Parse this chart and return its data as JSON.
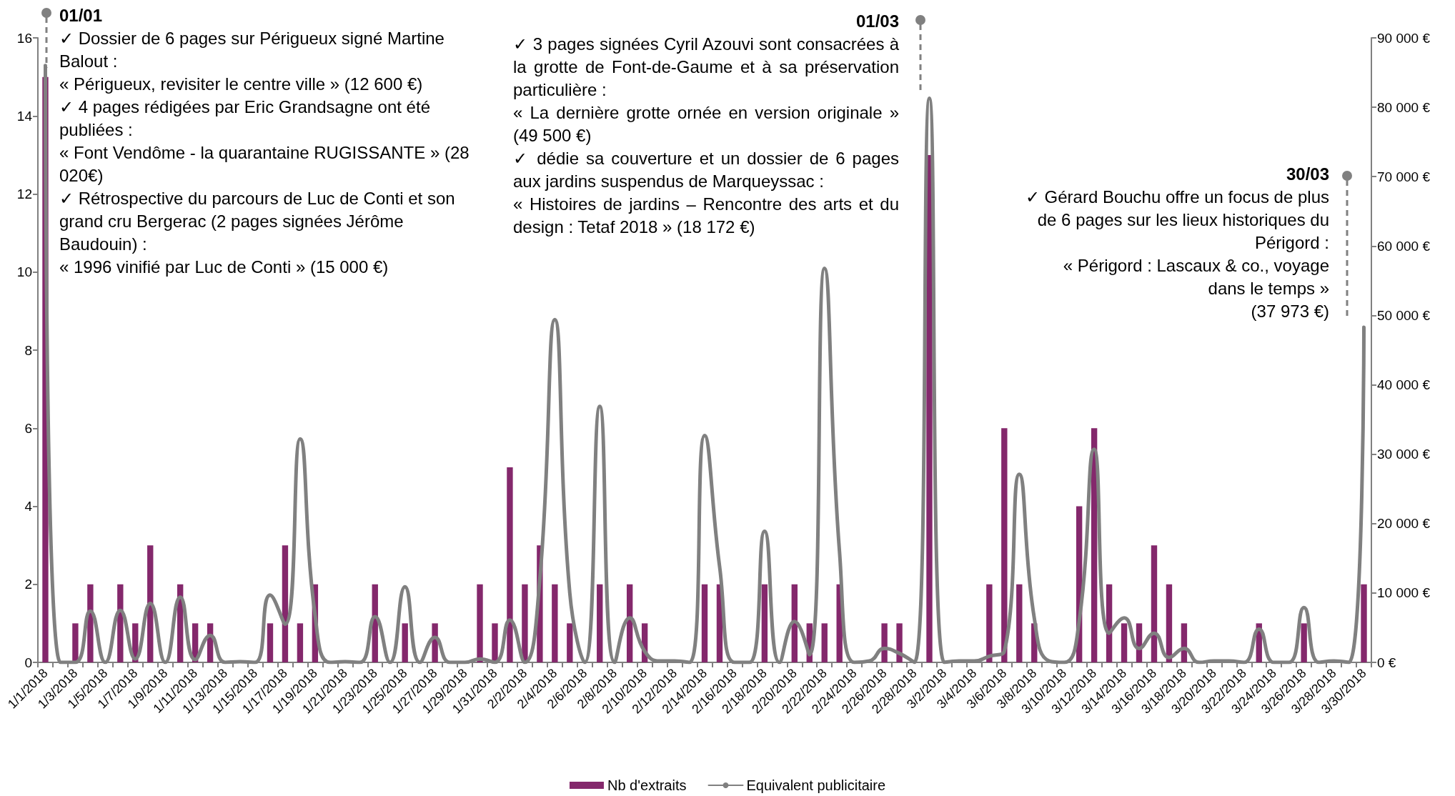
{
  "chart_data": {
    "type": "bar",
    "categories": [
      "1/1/2018",
      null,
      "1/3/2018",
      null,
      "1/5/2018",
      null,
      "1/7/2018",
      null,
      "1/9/2018",
      null,
      "1/11/2018",
      null,
      "1/13/2018",
      null,
      "1/15/2018",
      null,
      "1/17/2018",
      null,
      "1/19/2018",
      null,
      "1/21/2018",
      null,
      "1/23/2018",
      null,
      "1/25/2018",
      null,
      "1/27/2018",
      null,
      "1/29/2018",
      null,
      "1/31/2018",
      null,
      "2/2/2018",
      null,
      "2/4/2018",
      null,
      "2/6/2018",
      null,
      "2/8/2018",
      null,
      "2/10/2018",
      null,
      "2/12/2018",
      null,
      "2/14/2018",
      null,
      "2/16/2018",
      null,
      "2/18/2018",
      null,
      "2/20/2018",
      null,
      "2/22/2018",
      null,
      "2/24/2018",
      null,
      "2/26/2018",
      null,
      "2/28/2018",
      null,
      "3/2/2018",
      null,
      "3/4/2018",
      null,
      "3/6/2018",
      null,
      "3/8/2018",
      null,
      "3/10/2018",
      null,
      "3/12/2018",
      null,
      "3/14/2018",
      null,
      "3/16/2018",
      null,
      "3/18/2018",
      null,
      "3/20/2018",
      null,
      "3/22/2018",
      null,
      "3/24/2018",
      null,
      "3/26/2018",
      null,
      "3/28/2018",
      null,
      "3/30/2018"
    ],
    "series": [
      {
        "name": "Nb d'extraits",
        "color": "#84286c",
        "values": [
          15,
          0,
          1,
          2,
          0,
          2,
          1,
          3,
          0,
          2,
          1,
          1,
          0,
          0,
          0,
          1,
          3,
          1,
          2,
          0,
          0,
          0,
          2,
          0,
          1,
          0,
          1,
          0,
          0,
          2,
          1,
          5,
          2,
          3,
          2,
          1,
          0,
          2,
          0,
          2,
          1,
          0,
          0,
          0,
          2,
          2,
          0,
          0,
          2,
          0,
          2,
          1,
          1,
          2,
          0,
          0,
          1,
          1,
          0,
          13,
          0,
          0,
          0,
          2,
          6,
          2,
          1,
          0,
          0,
          4,
          6,
          2,
          1,
          1,
          3,
          2,
          1,
          0,
          0,
          0,
          0,
          1,
          0,
          0,
          1,
          0,
          0,
          0,
          2
        ]
      },
      {
        "name": "Equivalent publicitaire",
        "type": "line",
        "axis": "y2",
        "color": "#808080",
        "values": [
          86000,
          0,
          0,
          7400,
          0,
          7500,
          500,
          8500,
          0,
          9400,
          400,
          3900,
          0,
          100,
          0,
          9700,
          5500,
          32200,
          6800,
          0,
          100,
          0,
          6600,
          0,
          10900,
          0,
          3600,
          0,
          0,
          500,
          0,
          6100,
          0,
          12000,
          49400,
          10000,
          0,
          36900,
          0,
          6400,
          1600,
          200,
          200,
          0,
          32700,
          13800,
          0,
          0,
          18900,
          0,
          5900,
          1100,
          56800,
          16000,
          0,
          200,
          2000,
          1300,
          0,
          81300,
          0,
          200,
          200,
          900,
          1600,
          27100,
          6400,
          200,
          0,
          6000,
          30700,
          4200,
          6400,
          2000,
          4200,
          700,
          2000,
          0,
          200,
          200,
          0,
          4800,
          0,
          0,
          7900,
          0,
          200,
          0,
          48300
        ]
      }
    ],
    "ylim": [
      0,
      16
    ],
    "yticks": [
      0,
      2,
      4,
      6,
      8,
      10,
      12,
      14,
      16
    ],
    "y2lim": [
      0,
      90000
    ],
    "y2ticks": [
      {
        "value": 0,
        "label": "0 €"
      },
      {
        "value": 10000,
        "label": "10 000 €"
      },
      {
        "value": 20000,
        "label": "20 000 €"
      },
      {
        "value": 30000,
        "label": "30 000 €"
      },
      {
        "value": 40000,
        "label": "40 000 €"
      },
      {
        "value": 50000,
        "label": "50 000 €"
      },
      {
        "value": 60000,
        "label": "60 000 €"
      },
      {
        "value": 70000,
        "label": "70 000 €"
      },
      {
        "value": 80000,
        "label": "80 000 €"
      },
      {
        "value": 90000,
        "label": "90 000 €"
      }
    ],
    "grid": false,
    "legend": "bottom",
    "annotations": [
      "01/01\n✓ Dossier de 6 pages sur Périgueux signé Martine Balout :\n« Périgueux, revisiter le centre ville » (12 600 €)\n✓ 4 pages rédigées par Eric Grandsagne ont été publiées :\n« Font Vendôme - la quarantaine RUGISSANTE » (28 020€)\n✓ Rétrospective du parcours de Luc de Conti et son grand cru Bergerac (2 pages signées Jérôme Baudouin) :\n« 1996 vinifié par Luc de Conti » (15 000 €)",
      "01/03\n✓ 3 pages signées Cyril Azouvi sont consacrées à la grotte de Font-de-Gaume et à sa préservation particulière :\n« La dernière grotte ornée en version originale » (49 500 €)\n✓ dédie sa couverture et un dossier de 6 pages aux jardins suspendus de Marqueyssac :\n« Histoires de jardins – Rencontre des arts et du design : Tetaf 2018 » (18 172 €)",
      "30/03\n✓ Gérard Bouchu offre un focus de plus de 6 pages sur les lieux historiques du Périgord :\n« Périgord : Lascaux & co., voyage dans le temps »\n(37 973 €)"
    ]
  }
}
